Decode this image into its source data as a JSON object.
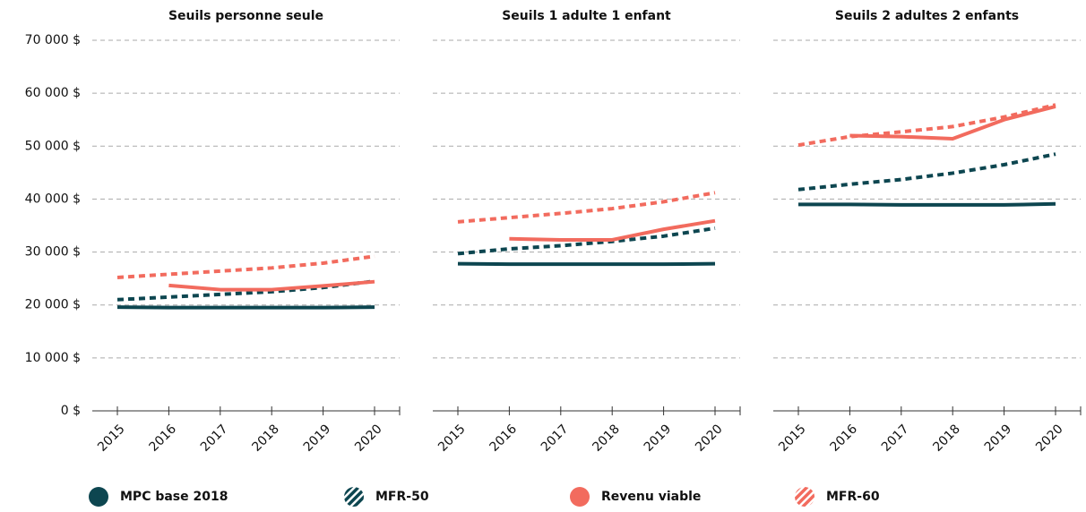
{
  "chart_data": [
    {
      "type": "line",
      "title": "Seuils personne seule",
      "categories": [
        "2015",
        "2016",
        "2017",
        "2018",
        "2019",
        "2020"
      ],
      "ylim": [
        0,
        70000
      ],
      "yticks": [
        {
          "value": 0,
          "label": "0 $"
        },
        {
          "value": 10000,
          "label": "10 000 $"
        },
        {
          "value": 20000,
          "label": "20 000 $"
        },
        {
          "value": 30000,
          "label": "30 000 $"
        },
        {
          "value": 40000,
          "label": "40 000 $"
        },
        {
          "value": 50000,
          "label": "50 000 $"
        },
        {
          "value": 60000,
          "label": "60 000 $"
        },
        {
          "value": 70000,
          "label": "70 000 $"
        }
      ],
      "grid": true,
      "series": [
        {
          "name": "MPC base 2018",
          "color": "#0d4650",
          "dashed": false,
          "values": [
            19600,
            19500,
            19500,
            19500,
            19500,
            19600
          ]
        },
        {
          "name": "MFR-50",
          "color": "#0d4650",
          "dashed": true,
          "values": [
            21000,
            21500,
            22000,
            22500,
            23300,
            24500
          ]
        },
        {
          "name": "Revenu viable",
          "color": "#f26b5e",
          "dashed": false,
          "values": [
            null,
            23700,
            22900,
            22900,
            23600,
            24400
          ]
        },
        {
          "name": "MFR-60",
          "color": "#f26b5e",
          "dashed": true,
          "values": [
            25200,
            25800,
            26400,
            27000,
            27900,
            29200
          ]
        }
      ]
    },
    {
      "type": "line",
      "title": "Seuils 1 adulte 1 enfant",
      "categories": [
        "2015",
        "2016",
        "2017",
        "2018",
        "2019",
        "2020"
      ],
      "ylim": [
        0,
        70000
      ],
      "yticks": [
        0,
        10000,
        20000,
        30000,
        40000,
        50000,
        60000,
        70000
      ],
      "grid": true,
      "series": [
        {
          "color": "#0d4650",
          "dashed": false,
          "values": [
            27800,
            27700,
            27700,
            27700,
            27700,
            27800
          ]
        },
        {
          "color": "#0d4650",
          "dashed": true,
          "values": [
            29700,
            30600,
            31200,
            32000,
            33000,
            34500
          ]
        },
        {
          "color": "#f26b5e",
          "dashed": false,
          "values": [
            null,
            32500,
            32300,
            32300,
            34300,
            35900
          ]
        },
        {
          "color": "#f26b5e",
          "dashed": true,
          "values": [
            35700,
            36500,
            37300,
            38200,
            39500,
            41200
          ]
        }
      ]
    },
    {
      "type": "line",
      "title": "Seuils 2 adultes 2 enfants",
      "categories": [
        "2015",
        "2016",
        "2017",
        "2018",
        "2019",
        "2020"
      ],
      "ylim": [
        0,
        70000
      ],
      "yticks": [
        0,
        10000,
        20000,
        30000,
        40000,
        50000,
        60000,
        70000
      ],
      "grid": true,
      "series": [
        {
          "color": "#0d4650",
          "dashed": false,
          "values": [
            39000,
            39000,
            38900,
            38900,
            38900,
            39100
          ]
        },
        {
          "color": "#0d4650",
          "dashed": true,
          "values": [
            41800,
            42800,
            43700,
            44900,
            46500,
            48500
          ]
        },
        {
          "color": "#f26b5e",
          "dashed": false,
          "values": [
            null,
            52000,
            51800,
            51400,
            55000,
            57500
          ]
        },
        {
          "color": "#f26b5e",
          "dashed": true,
          "values": [
            50200,
            51800,
            52700,
            53700,
            55500,
            57800
          ]
        }
      ]
    }
  ]
}
